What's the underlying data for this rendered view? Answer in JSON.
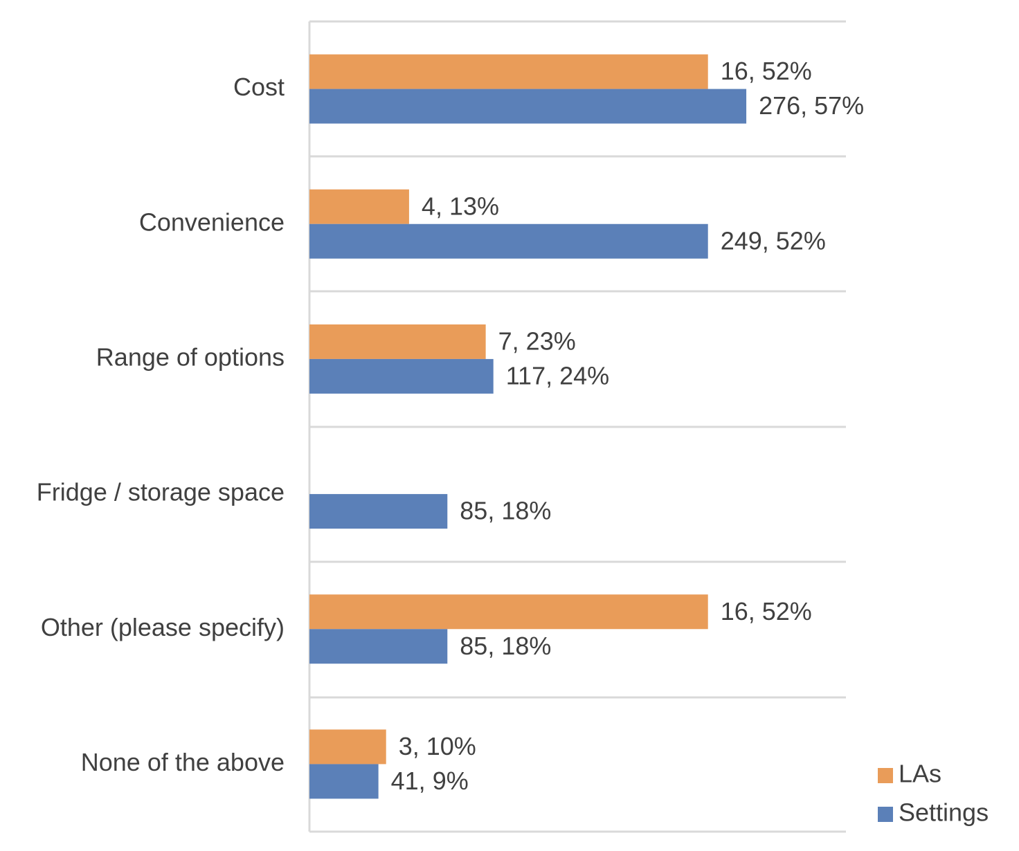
{
  "chart_data": {
    "type": "bar",
    "orientation": "horizontal",
    "categories": [
      "Cost",
      "Convenience",
      "Range of options",
      "Fridge / storage space",
      "Other (please specify)",
      "None of the above"
    ],
    "series": [
      {
        "name": "LAs",
        "color": "#e99c59",
        "values": [
          52,
          13,
          23,
          null,
          52,
          10
        ],
        "value_labels": [
          "16, 52%",
          "4, 13%",
          "7, 23%",
          null,
          "16, 52%",
          "3, 10%"
        ]
      },
      {
        "name": "Settings",
        "color": "#5b80b8",
        "values": [
          57,
          52,
          24,
          18,
          18,
          9
        ],
        "value_labels": [
          "276, 57%",
          "249, 52%",
          "117, 24%",
          "85, 18%",
          "85, 18%",
          "41, 9%"
        ]
      }
    ],
    "xlim": [
      0,
      70
    ],
    "legend": "bottom-right"
  }
}
